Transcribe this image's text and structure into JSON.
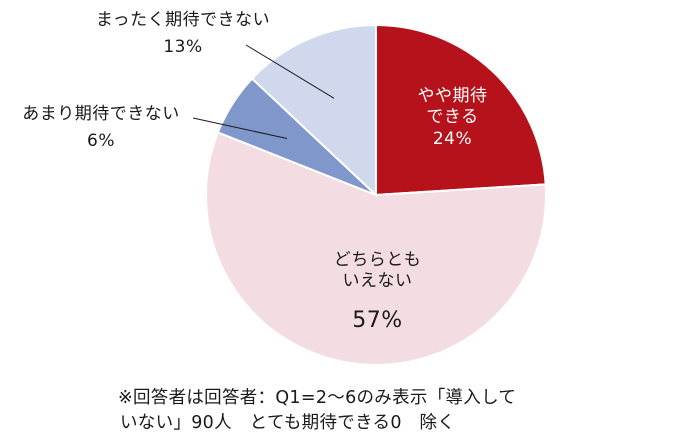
{
  "chart_data": {
    "type": "pie",
    "start_angle_deg": 0,
    "direction": "clockwise",
    "slices": [
      {
        "label": "やや期待できる",
        "label_lines": [
          "やや期待",
          "できる"
        ],
        "pct_label": "24%",
        "value": 24,
        "color": "#b5121b",
        "label_color": "#ffffff"
      },
      {
        "label": "どちらともいえない",
        "label_lines": [
          "どちらとも",
          "いえない"
        ],
        "pct_label": "57%",
        "value": 57,
        "color": "#f3dde2",
        "label_color": "#1a1a1a"
      },
      {
        "label": "あまり期待できない",
        "label_lines": [
          "あまり期待できない"
        ],
        "pct_label": "6%",
        "value": 6,
        "color": "#8097cb",
        "label_color": "#1a1a1a"
      },
      {
        "label": "まったく期待できない",
        "label_lines": [
          "まったく期待できない"
        ],
        "pct_label": "13%",
        "value": 13,
        "color": "#d0d8ee",
        "label_color": "#1a1a1a"
      }
    ]
  },
  "footnote": {
    "line1": "※回答者は回答者：Q1=2～6のみ表示「導入して",
    "line2": "いない」90人　とても期待できる0　除く"
  }
}
